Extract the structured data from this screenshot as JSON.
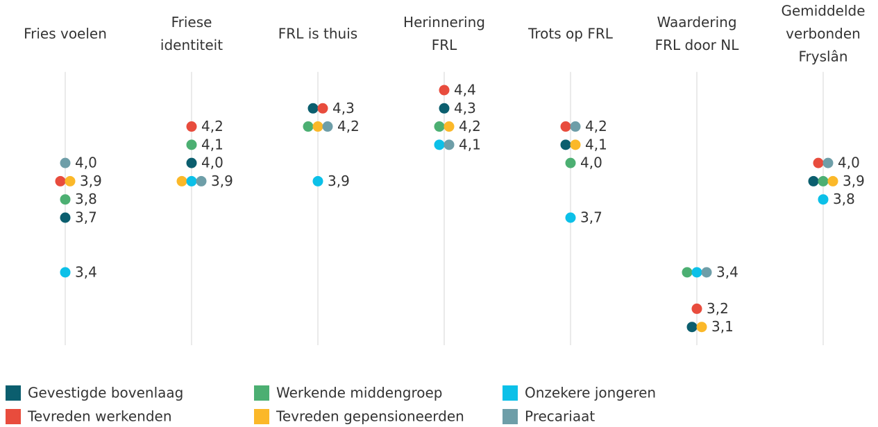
{
  "chart_data": {
    "type": "dot",
    "categories": [
      [
        "Fries voelen"
      ],
      [
        "Friese",
        "identiteit"
      ],
      [
        "FRL is thuis"
      ],
      [
        "Herinnering",
        "FRL"
      ],
      [
        "Trots op FRL"
      ],
      [
        "Waardering",
        "FRL door NL"
      ],
      [
        "Gemiddelde",
        "verbonden",
        "Fryslân"
      ]
    ],
    "ylim": [
      3.0,
      4.5
    ],
    "series": [
      {
        "name": "Gevestigde bovenlaag",
        "color": "#0b5e6e",
        "values": [
          3.7,
          4.0,
          4.3,
          4.3,
          4.1,
          3.1,
          3.9
        ],
        "value_labels": [
          "3,7",
          "4,0",
          null,
          "4,3",
          null,
          null,
          null
        ]
      },
      {
        "name": "Werkende middengroep",
        "color": "#4caf72",
        "values": [
          3.8,
          4.1,
          4.2,
          4.2,
          4.0,
          3.4,
          3.9
        ],
        "value_labels": [
          "3,8",
          "4,1",
          null,
          null,
          "4,0",
          null,
          null
        ]
      },
      {
        "name": "Onzekere jongeren",
        "color": "#0cc0e8",
        "values": [
          3.4,
          3.9,
          3.9,
          4.1,
          3.7,
          3.4,
          3.8
        ],
        "value_labels": [
          "3,4",
          null,
          "3,9",
          null,
          "3,7",
          null,
          "3,8"
        ]
      },
      {
        "name": "Tevreden werkenden",
        "color": "#e84c3d",
        "values": [
          3.9,
          4.2,
          4.3,
          4.4,
          4.2,
          3.2,
          4.0
        ],
        "value_labels": [
          null,
          "4,2",
          "4,3",
          "4,4",
          null,
          "3,2",
          null
        ]
      },
      {
        "name": "Tevreden gepensioneerden",
        "color": "#fbb829",
        "values": [
          3.9,
          3.9,
          4.2,
          4.2,
          4.1,
          3.1,
          3.9
        ],
        "value_labels": [
          "3,9",
          null,
          null,
          "4,2",
          "4,1",
          "3,1",
          "3,9"
        ]
      },
      {
        "name": "Precariaat",
        "color": "#6e9ea8",
        "values": [
          4.0,
          3.9,
          4.2,
          4.1,
          4.2,
          3.4,
          4.0
        ],
        "value_labels": [
          "4,0",
          "3,9",
          "4,2",
          "4,1",
          "4,2",
          "3,4",
          "4,0"
        ]
      }
    ]
  }
}
